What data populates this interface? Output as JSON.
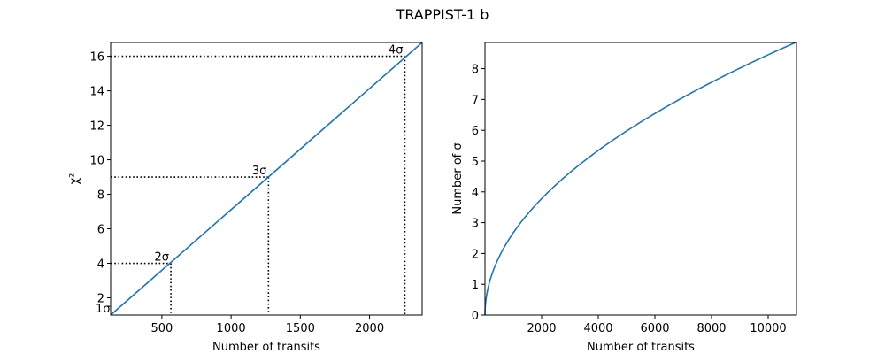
{
  "figure": {
    "suptitle": "TRAPPIST-1 b"
  },
  "chart_data": [
    {
      "type": "line",
      "xlabel": "Number of transits",
      "ylabel": "χ²",
      "xlim": [
        130,
        2380
      ],
      "ylim": [
        1,
        16.8
      ],
      "xticks": [
        500,
        1000,
        1500,
        2000
      ],
      "yticks": [
        2,
        4,
        6,
        8,
        10,
        12,
        14,
        16
      ],
      "grid": false,
      "series": [
        {
          "color": "#1f77b4",
          "x": [
            130,
            2380
          ],
          "y": [
            1.0,
            16.8
          ]
        }
      ],
      "thresholds": [
        {
          "label": "1σ",
          "x": 140,
          "y": 1
        },
        {
          "label": "2σ",
          "x": 565,
          "y": 4
        },
        {
          "label": "3σ",
          "x": 1270,
          "y": 9
        },
        {
          "label": "4σ",
          "x": 2255,
          "y": 16
        }
      ]
    },
    {
      "type": "line",
      "xlabel": "Number of transits",
      "ylabel": "Number of σ",
      "xlim": [
        0,
        11000
      ],
      "ylim": [
        0,
        8.85
      ],
      "xticks": [
        2000,
        4000,
        6000,
        8000,
        10000
      ],
      "yticks": [
        0,
        1,
        2,
        3,
        4,
        5,
        6,
        7,
        8
      ],
      "grid": false,
      "series": [
        {
          "color": "#1f77b4",
          "function": "y = 0.0845 * sqrt(x)",
          "x_range": [
            0,
            11000
          ]
        }
      ]
    }
  ]
}
